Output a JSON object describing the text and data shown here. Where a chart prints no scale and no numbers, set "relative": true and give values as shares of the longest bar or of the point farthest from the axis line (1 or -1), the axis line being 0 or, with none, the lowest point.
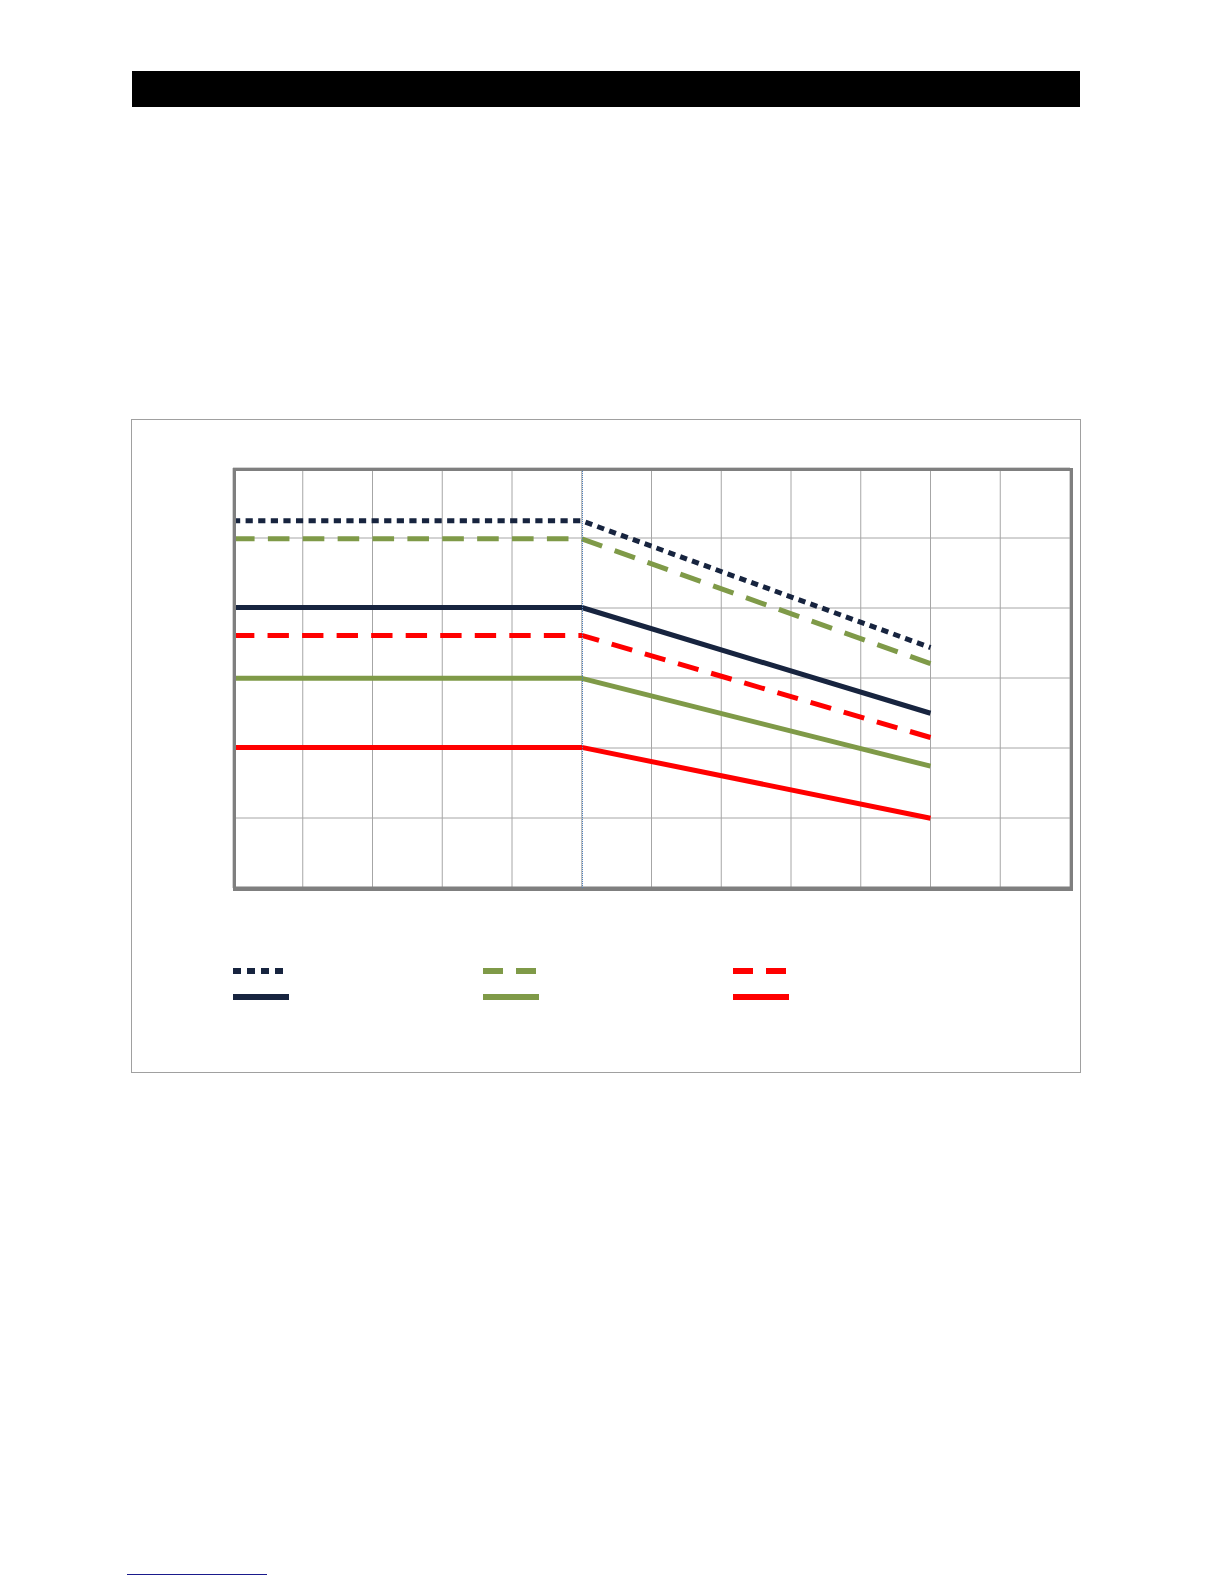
{
  "chart_data": {
    "type": "line",
    "relative": true,
    "grid": true,
    "marker": "none",
    "categories": [
      null,
      null,
      null,
      null,
      null,
      null,
      null,
      null,
      null,
      null,
      null,
      null,
      null
    ],
    "series": [
      {
        "color": "#17243f",
        "line_style": "dotted",
        "values": [
          1,
          null,
          null,
          null,
          null,
          1,
          null,
          null,
          null,
          null,
          0.655,
          null,
          null
        ]
      },
      {
        "color": "#7f9a48",
        "line_style": "dashed",
        "values": [
          0.951,
          null,
          null,
          null,
          null,
          0.951,
          null,
          null,
          null,
          null,
          0.611,
          null,
          null
        ]
      },
      {
        "color": "#ff0000",
        "line_style": "dashed",
        "values": [
          0.688,
          null,
          null,
          null,
          null,
          0.688,
          null,
          null,
          null,
          null,
          0.41,
          null,
          null
        ]
      },
      {
        "color": "#17243f",
        "line_style": "solid",
        "values": [
          0.764,
          null,
          null,
          null,
          null,
          0.764,
          null,
          null,
          null,
          null,
          0.476,
          null,
          null
        ]
      },
      {
        "color": "#7f9a48",
        "line_style": "solid",
        "values": [
          0.571,
          null,
          null,
          null,
          null,
          0.571,
          null,
          null,
          null,
          null,
          0.332,
          null,
          null
        ]
      },
      {
        "color": "#ff0000",
        "line_style": "solid",
        "values": [
          0.383,
          null,
          null,
          null,
          null,
          0.383,
          null,
          null,
          null,
          null,
          0.19,
          null,
          null
        ]
      }
    ]
  }
}
